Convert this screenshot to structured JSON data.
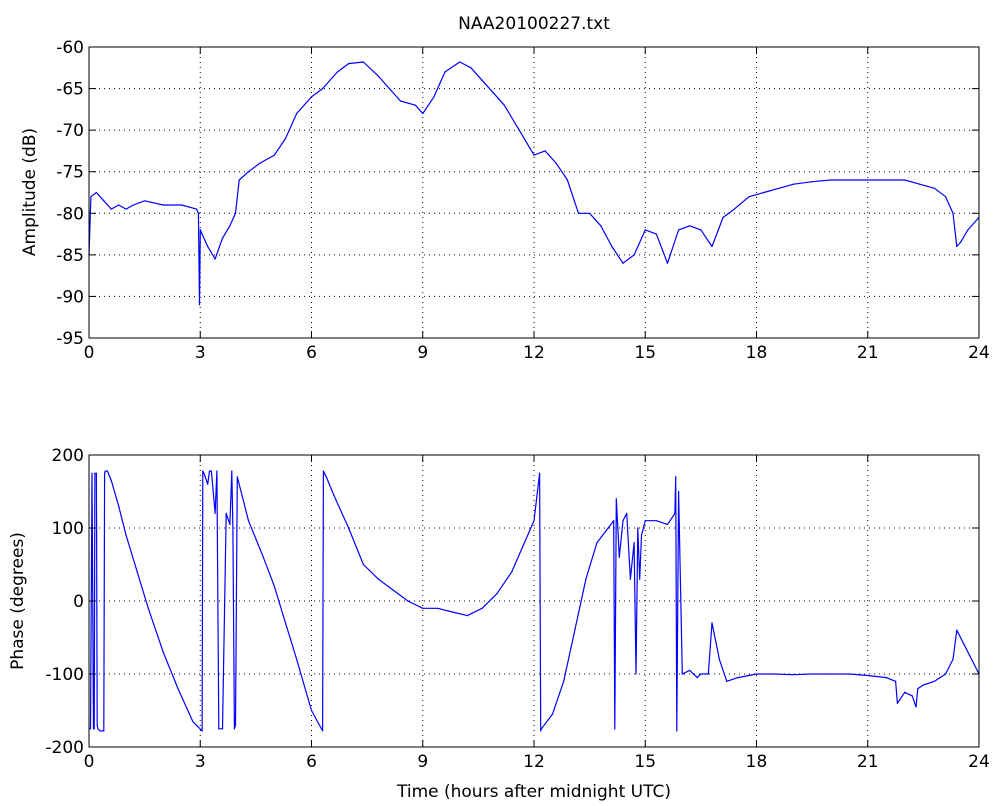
{
  "chart_data": [
    {
      "type": "line",
      "title": "NAA20100227.txt",
      "xlabel": "",
      "ylabel": "Amplitude (dB)",
      "xlim": [
        0,
        24
      ],
      "ylim": [
        -95,
        -60
      ],
      "xticks": [
        0,
        3,
        6,
        9,
        12,
        15,
        18,
        21,
        24
      ],
      "yticks": [
        -95,
        -90,
        -85,
        -80,
        -75,
        -70,
        -65,
        -60
      ],
      "grid": true,
      "line_color": "#0000ff",
      "series": [
        {
          "x": [
            0,
            0.05,
            0.2,
            0.4,
            0.6,
            0.8,
            1.0,
            1.2,
            1.5,
            2.0,
            2.5,
            2.9,
            2.95,
            2.98,
            3.0,
            3.05,
            3.2,
            3.4,
            3.6,
            3.8,
            3.95,
            4.05,
            4.3,
            4.6,
            5.0,
            5.3,
            5.6,
            6.0,
            6.3,
            6.7,
            7.0,
            7.4,
            7.8,
            8.1,
            8.4,
            8.8,
            9.0,
            9.3,
            9.6,
            10.0,
            10.3,
            10.6,
            10.9,
            11.2,
            11.6,
            12.0,
            12.3,
            12.6,
            12.9,
            13.2,
            13.5,
            13.8,
            14.1,
            14.4,
            14.7,
            15.0,
            15.3,
            15.6,
            15.9,
            16.2,
            16.5,
            16.8,
            17.1,
            17.4,
            17.8,
            18.2,
            18.6,
            19.0,
            19.5,
            20.0,
            20.5,
            21.0,
            21.5,
            22.0,
            22.4,
            22.8,
            23.1,
            23.3,
            23.4,
            23.5,
            23.7,
            24.0
          ],
          "y": [
            -85,
            -78,
            -77.5,
            -78.5,
            -79.5,
            -79,
            -79.5,
            -79,
            -78.5,
            -79,
            -79,
            -79.5,
            -80,
            -91,
            -82,
            -82.5,
            -84,
            -85.5,
            -83,
            -81.5,
            -80,
            -76,
            -75,
            -74,
            -73,
            -71,
            -68,
            -66,
            -65,
            -63,
            -62,
            -61.8,
            -63.5,
            -65,
            -66.5,
            -67,
            -68,
            -66,
            -63,
            -61.8,
            -62.5,
            -64,
            -65.5,
            -67,
            -70,
            -73,
            -72.5,
            -74,
            -76,
            -80,
            -80,
            -81.5,
            -84,
            -86,
            -85,
            -82,
            -82.5,
            -86,
            -82,
            -81.5,
            -82,
            -84,
            -80.5,
            -79.5,
            -78,
            -77.5,
            -77,
            -76.5,
            -76.2,
            -76,
            -76,
            -76,
            -76,
            -76,
            -76.5,
            -77,
            -78,
            -80,
            -84,
            -83.5,
            -82,
            -80.5
          ]
        }
      ]
    },
    {
      "type": "line",
      "title": "",
      "xlabel": "Time (hours after midnight UTC)",
      "ylabel": "Phase (degrees)",
      "xlim": [
        0,
        24
      ],
      "ylim": [
        -200,
        200
      ],
      "xticks": [
        0,
        3,
        6,
        9,
        12,
        15,
        18,
        21,
        24
      ],
      "yticks": [
        -200,
        -100,
        0,
        100,
        200
      ],
      "grid": true,
      "line_color": "#0000ff",
      "series": [
        {
          "x": [
            0,
            0.04,
            0.08,
            0.12,
            0.14,
            0.16,
            0.2,
            0.22,
            0.24,
            0.3,
            0.4,
            0.42,
            0.44,
            0.5,
            0.6,
            0.8,
            1.0,
            1.3,
            1.6,
            2.0,
            2.4,
            2.8,
            3.05,
            3.07,
            3.1,
            3.2,
            3.25,
            3.3,
            3.35,
            3.4,
            3.45,
            3.5,
            3.6,
            3.7,
            3.8,
            3.85,
            3.88,
            3.92,
            3.95,
            4.0,
            4.3,
            4.7,
            5.0,
            5.3,
            5.6,
            6.0,
            6.3,
            6.32,
            6.4,
            6.6,
            7.0,
            7.4,
            7.8,
            8.2,
            8.6,
            9.0,
            9.4,
            9.8,
            10.2,
            10.6,
            11.0,
            11.4,
            11.7,
            12.0,
            12.15,
            12.18,
            12.2,
            12.5,
            12.8,
            13.1,
            13.4,
            13.7,
            14.0,
            14.15,
            14.18,
            14.22,
            14.3,
            14.4,
            14.5,
            14.6,
            14.7,
            14.75,
            14.8,
            14.85,
            14.9,
            15.0,
            15.3,
            15.6,
            15.8,
            15.82,
            15.85,
            15.9,
            16.0,
            16.2,
            16.4,
            16.5,
            16.7,
            16.8,
            17.0,
            17.2,
            17.5,
            18.0,
            18.5,
            19.0,
            19.5,
            20.0,
            20.5,
            21.0,
            21.5,
            21.75,
            21.8,
            22.0,
            22.2,
            22.3,
            22.35,
            22.5,
            22.8,
            23.1,
            23.3,
            23.4,
            23.6,
            23.8,
            24.0
          ],
          "y": [
            -175,
            -175,
            175,
            -175,
            -175,
            175,
            175,
            -170,
            -175,
            -178,
            -178,
            175,
            178,
            178,
            165,
            130,
            90,
            40,
            -10,
            -70,
            -120,
            -165,
            -178,
            178,
            175,
            160,
            178,
            178,
            150,
            120,
            178,
            -175,
            -175,
            120,
            105,
            178,
            100,
            -175,
            -170,
            170,
            110,
            60,
            20,
            -30,
            -80,
            -150,
            -178,
            178,
            170,
            145,
            100,
            50,
            30,
            15,
            0,
            -10,
            -10,
            -15,
            -20,
            -10,
            10,
            40,
            75,
            110,
            175,
            -178,
            -175,
            -155,
            -110,
            -40,
            30,
            80,
            100,
            110,
            -175,
            140,
            60,
            110,
            120,
            30,
            80,
            -100,
            100,
            30,
            90,
            110,
            110,
            105,
            120,
            170,
            -178,
            150,
            -100,
            -95,
            -105,
            -100,
            -100,
            -30,
            -80,
            -110,
            -105,
            -100,
            -100,
            -101,
            -100,
            -100,
            -100,
            -102,
            -105,
            -110,
            -140,
            -125,
            -130,
            -145,
            -120,
            -115,
            -110,
            -100,
            -80,
            -40,
            -60,
            -80,
            -100
          ]
        }
      ]
    }
  ]
}
